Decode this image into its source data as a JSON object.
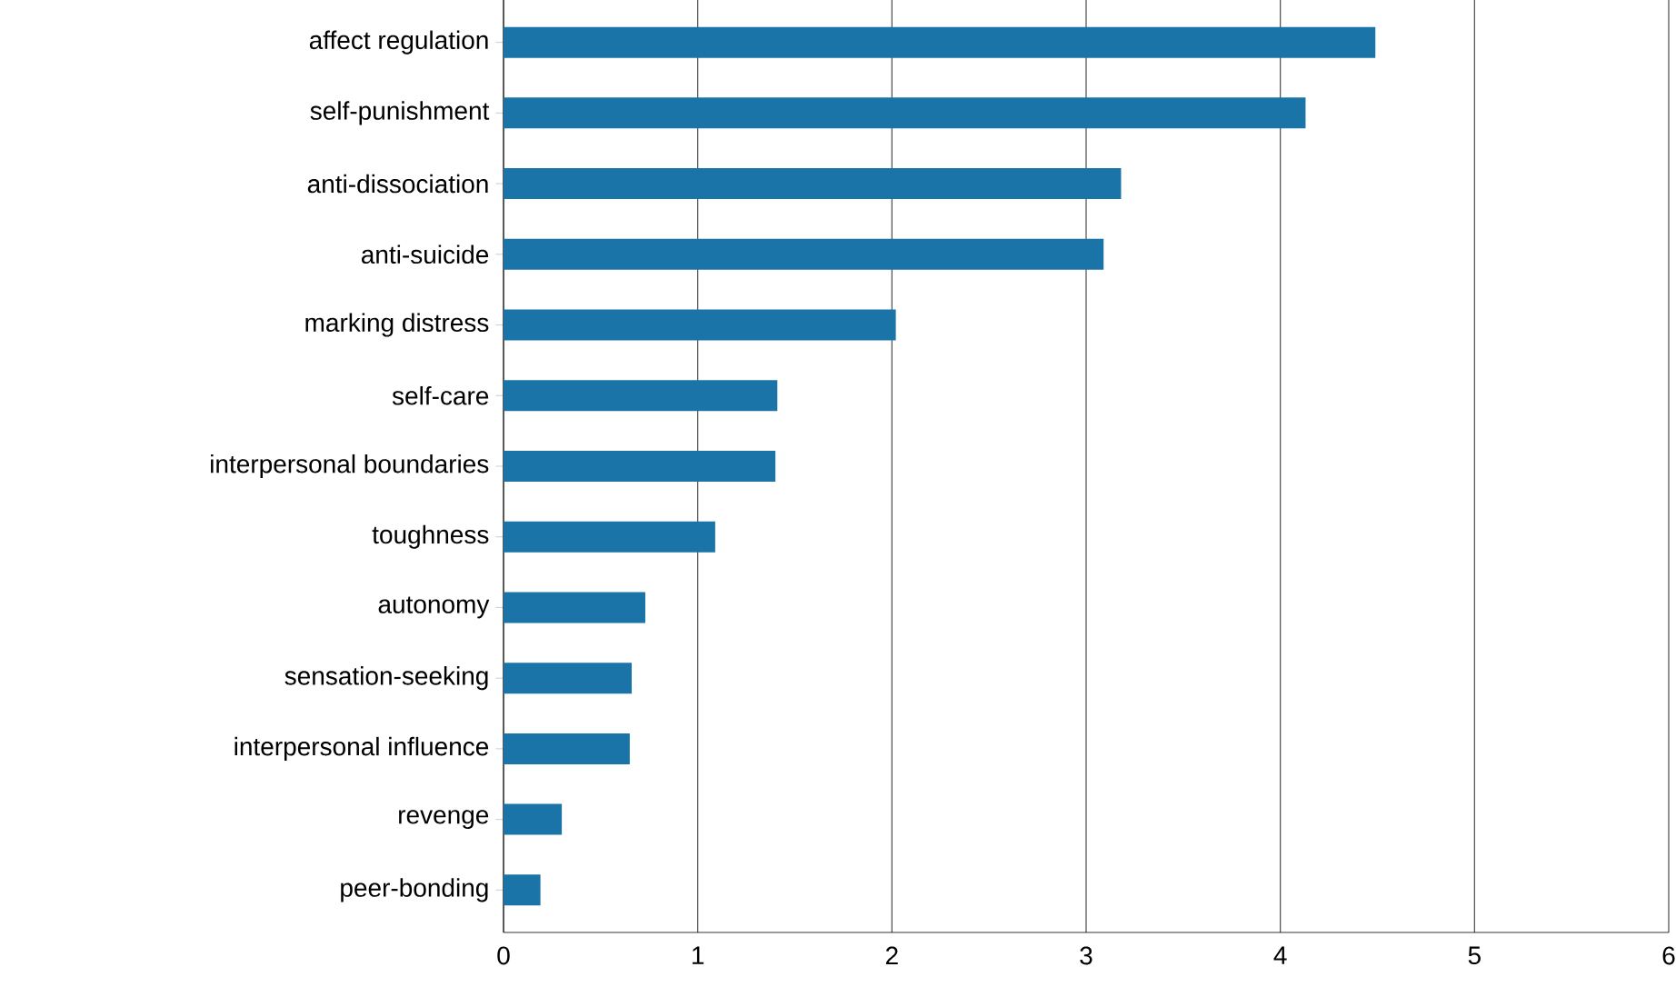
{
  "chart_data": {
    "type": "bar",
    "orientation": "horizontal",
    "categories": [
      "affect regulation",
      "self-punishment",
      "anti-dissociation",
      "anti-suicide",
      "marking distress",
      "self-care",
      "interpersonal boundaries",
      "toughness",
      "autonomy",
      "sensation-seeking",
      "interpersonal influence",
      "revenge",
      "peer-bonding"
    ],
    "values": [
      4.49,
      4.13,
      3.18,
      3.09,
      2.02,
      1.41,
      1.4,
      1.09,
      0.73,
      0.66,
      0.65,
      0.3,
      0.19
    ],
    "color": "#1a74a8",
    "xlim": [
      0,
      6
    ],
    "xticks": [
      0,
      1,
      2,
      3,
      4,
      5,
      6
    ],
    "grid": "x"
  }
}
